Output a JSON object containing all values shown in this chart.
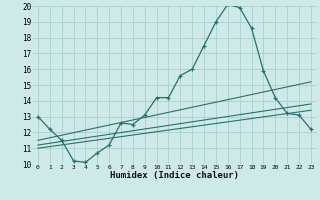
{
  "xlabel": "Humidex (Indice chaleur)",
  "bg_color": "#ceeae8",
  "grid_color": "#aacfcc",
  "line_color": "#2b6e6e",
  "xlim": [
    -0.5,
    23.5
  ],
  "ylim": [
    10,
    20
  ],
  "xticks": [
    0,
    1,
    2,
    3,
    4,
    5,
    6,
    7,
    8,
    9,
    10,
    11,
    12,
    13,
    14,
    15,
    16,
    17,
    18,
    19,
    20,
    21,
    22,
    23
  ],
  "yticks": [
    10,
    11,
    12,
    13,
    14,
    15,
    16,
    17,
    18,
    19,
    20
  ],
  "main_x": [
    0,
    1,
    2,
    3,
    4,
    5,
    6,
    7,
    8,
    9,
    10,
    11,
    12,
    13,
    14,
    15,
    16,
    17,
    18,
    19,
    20,
    21,
    22,
    23
  ],
  "main_y": [
    13.0,
    12.2,
    11.5,
    10.2,
    10.1,
    10.7,
    11.2,
    12.6,
    12.5,
    13.1,
    14.2,
    14.2,
    15.6,
    16.0,
    17.5,
    19.0,
    20.1,
    19.9,
    18.6,
    15.9,
    14.2,
    13.2,
    13.1,
    12.2
  ],
  "line2_x": [
    0,
    23
  ],
  "line2_y": [
    11.5,
    15.2
  ],
  "line3_x": [
    0,
    23
  ],
  "line3_y": [
    11.2,
    13.8
  ],
  "line4_x": [
    0,
    23
  ],
  "line4_y": [
    11.0,
    13.4
  ]
}
